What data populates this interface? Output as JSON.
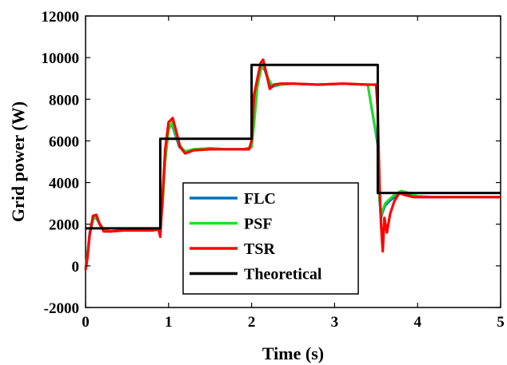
{
  "chart_data": {
    "type": "line",
    "xlabel": "Time (s)",
    "ylabel": "Grid power (W)",
    "xlim": [
      0,
      5
    ],
    "ylim": [
      -2000,
      12000
    ],
    "xticks": [
      0,
      1,
      2,
      3,
      4,
      5
    ],
    "xtick_labels": [
      "0",
      "1",
      "2",
      "3",
      "4",
      "5"
    ],
    "yticks": [
      -2000,
      0,
      2000,
      4000,
      6000,
      8000,
      10000,
      12000
    ],
    "ytick_labels": [
      "-2000",
      "0",
      "2000",
      "4000",
      "6000",
      "8000",
      "10000",
      "12000"
    ],
    "grid": false,
    "legend_position": "lower-center",
    "series": [
      {
        "name": "FLC",
        "color": "#0072BD",
        "x": [
          0,
          0.02,
          0.05,
          0.09,
          0.13,
          0.17,
          0.22,
          0.3,
          0.45,
          0.6,
          0.8,
          0.9,
          0.93,
          0.96,
          1.0,
          1.04,
          1.08,
          1.13,
          1.2,
          1.3,
          1.5,
          1.7,
          1.9,
          2.0,
          2.03,
          2.07,
          2.12,
          2.16,
          2.2,
          2.25,
          2.35,
          2.5,
          2.8,
          3.1,
          3.4,
          3.52,
          3.54,
          3.56,
          3.58,
          3.61,
          3.66,
          3.72,
          3.8,
          3.9,
          4.0,
          4.2,
          4.5,
          4.8,
          5.0
        ],
        "y": [
          -100,
          500,
          1600,
          2300,
          2300,
          2000,
          1750,
          1650,
          1700,
          1700,
          1700,
          1750,
          3200,
          5200,
          6600,
          6800,
          6300,
          5700,
          5500,
          5600,
          5650,
          5600,
          5600,
          5700,
          7000,
          8800,
          9600,
          9400,
          8900,
          8600,
          8700,
          8750,
          8700,
          8750,
          8700,
          5800,
          3200,
          2300,
          2600,
          2900,
          3100,
          3300,
          3550,
          3450,
          3300,
          3300,
          3300,
          3300,
          3300
        ]
      },
      {
        "name": "PSF",
        "color": "#20E020",
        "x": [
          0,
          0.02,
          0.05,
          0.09,
          0.13,
          0.17,
          0.22,
          0.3,
          0.45,
          0.6,
          0.8,
          0.9,
          0.93,
          0.96,
          1.0,
          1.04,
          1.08,
          1.13,
          1.2,
          1.3,
          1.5,
          1.7,
          1.9,
          2.0,
          2.03,
          2.07,
          2.12,
          2.16,
          2.2,
          2.25,
          2.35,
          2.5,
          2.8,
          3.1,
          3.4,
          3.52,
          3.54,
          3.56,
          3.58,
          3.61,
          3.66,
          3.72,
          3.8,
          3.9,
          4.0,
          4.2,
          4.5,
          4.8,
          5.0
        ],
        "y": [
          -100,
          450,
          1500,
          2200,
          2350,
          2050,
          1750,
          1650,
          1700,
          1700,
          1700,
          1750,
          3000,
          5000,
          6500,
          6900,
          6400,
          5800,
          5500,
          5600,
          5650,
          5600,
          5600,
          5700,
          6800,
          8600,
          9550,
          9500,
          9000,
          8650,
          8700,
          8750,
          8700,
          8750,
          8700,
          5900,
          3300,
          2400,
          2700,
          3000,
          3200,
          3400,
          3600,
          3500,
          3350,
          3300,
          3300,
          3300,
          3300
        ]
      },
      {
        "name": "TSR",
        "color": "#FF0000",
        "x": [
          0,
          0.02,
          0.05,
          0.09,
          0.13,
          0.17,
          0.22,
          0.3,
          0.45,
          0.6,
          0.8,
          0.88,
          0.9,
          0.93,
          0.96,
          1.0,
          1.05,
          1.09,
          1.14,
          1.2,
          1.3,
          1.5,
          1.7,
          1.9,
          1.97,
          2.0,
          2.03,
          2.07,
          2.11,
          2.14,
          2.18,
          2.22,
          2.27,
          2.35,
          2.5,
          2.8,
          3.1,
          3.4,
          3.5,
          3.52,
          3.54,
          3.56,
          3.58,
          3.6,
          3.63,
          3.67,
          3.72,
          3.78,
          3.85,
          3.95,
          4.1,
          4.4,
          4.7,
          5.0
        ],
        "y": [
          -200,
          300,
          1500,
          2400,
          2450,
          2000,
          1650,
          1650,
          1700,
          1700,
          1700,
          1750,
          1400,
          3500,
          5600,
          6900,
          7100,
          6500,
          5700,
          5400,
          5550,
          5600,
          5600,
          5600,
          5600,
          6000,
          8200,
          9000,
          9750,
          9900,
          9200,
          8500,
          8700,
          8750,
          8750,
          8700,
          8750,
          8700,
          8700,
          7500,
          4000,
          2000,
          700,
          2300,
          1600,
          2500,
          3100,
          3500,
          3400,
          3300,
          3300,
          3300,
          3300,
          3300
        ]
      },
      {
        "name": "Theoretical",
        "color": "#000000",
        "x": [
          0,
          0.9,
          0.9,
          2.0,
          2.0,
          3.52,
          3.52,
          5.0
        ],
        "y": [
          1800,
          1800,
          6100,
          6100,
          9650,
          9650,
          3500,
          3500
        ]
      }
    ]
  }
}
